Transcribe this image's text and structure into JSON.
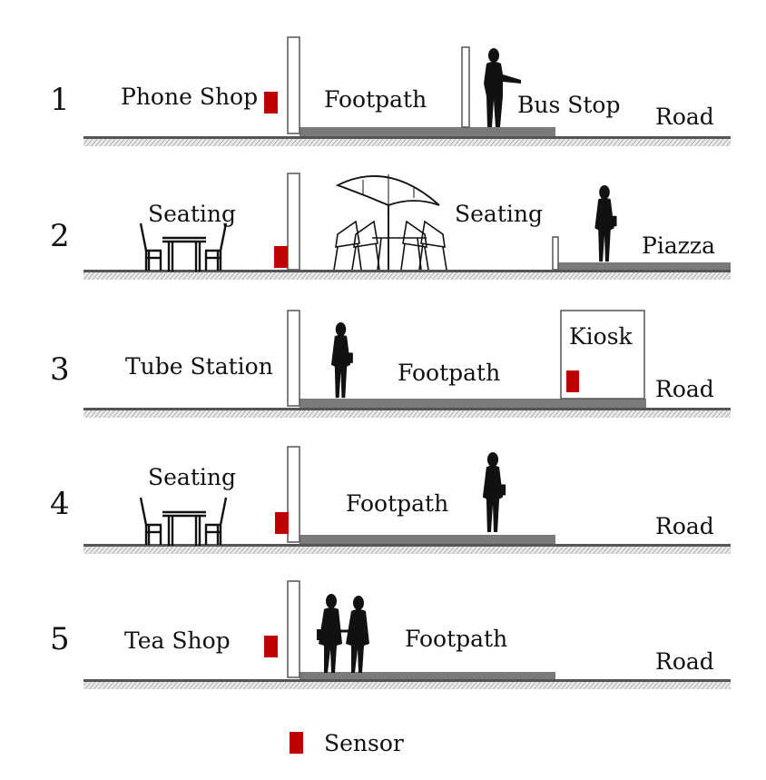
{
  "rows": [
    {
      "number": "1",
      "labels": {
        "left": "Phone Shop",
        "middle": "Footpath",
        "right": "Bus Stop",
        "edge": "Road"
      }
    },
    {
      "number": "2",
      "labels": {
        "left": "Seating",
        "middle": "Seating",
        "edge": "Piazza"
      }
    },
    {
      "number": "3",
      "labels": {
        "left": "Tube Station",
        "middle": "Footpath",
        "kiosk": "Kiosk",
        "edge": "Road"
      }
    },
    {
      "number": "4",
      "labels": {
        "left": "Seating",
        "middle": "Footpath",
        "edge": "Road"
      }
    },
    {
      "number": "5",
      "labels": {
        "left": "Tea Shop",
        "middle": "Footpath",
        "edge": "Road"
      }
    }
  ],
  "legend": {
    "label": "Sensor",
    "icon": "sensor-square"
  },
  "colors": {
    "sensor": "#c00000",
    "pavement": "#7a7a7a",
    "ground_hatch": "#9a9a9a",
    "ink": "#111111"
  }
}
